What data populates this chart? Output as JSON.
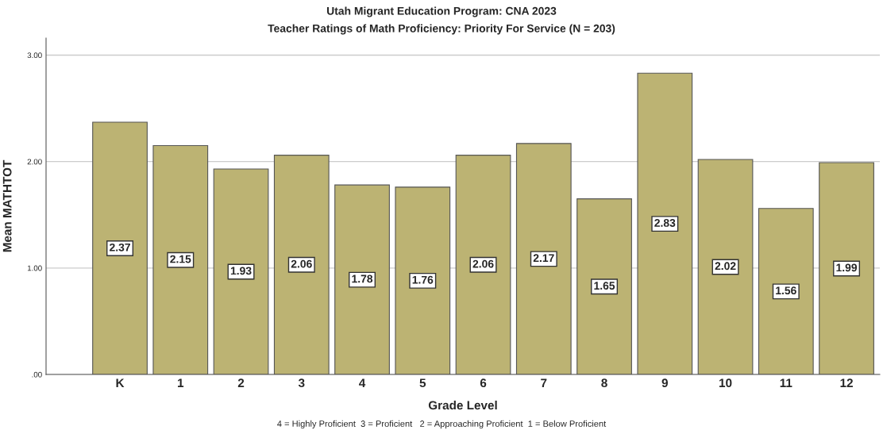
{
  "chart_data": {
    "type": "bar",
    "title": "Utah Migrant Education Program: CNA 2023",
    "subtitle": "Teacher Ratings of Math Proficiency: Priority For Service (N = 203)",
    "xlabel": "Grade Level",
    "ylabel": "Mean MATHTOT",
    "categories": [
      "K",
      "1",
      "2",
      "3",
      "4",
      "5",
      "6",
      "7",
      "8",
      "9",
      "10",
      "11",
      "12"
    ],
    "values": [
      2.37,
      2.15,
      1.93,
      2.06,
      1.78,
      1.76,
      2.06,
      2.17,
      1.65,
      2.83,
      2.02,
      1.56,
      1.99
    ],
    "color": "#bcb373",
    "data_labels": true,
    "ylim": [
      0,
      3.16
    ],
    "yticks": [
      {
        "value": 0,
        "label": ".00"
      },
      {
        "value": 1,
        "label": "1.00"
      },
      {
        "value": 2,
        "label": "2.00"
      },
      {
        "value": 3,
        "label": "3.00"
      }
    ],
    "grid": "y",
    "annotations": [
      "4 = Highly Proficient  3 = Proficient   2 = Approaching Proficient  1 = Below Proficient"
    ]
  }
}
